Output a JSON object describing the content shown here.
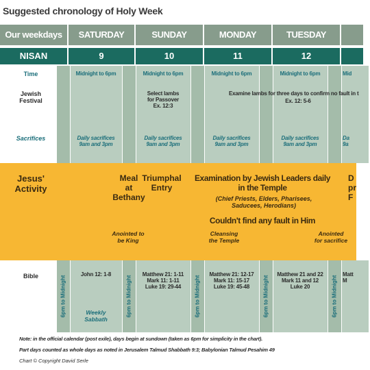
{
  "title": "Suggested chronology of Holy Week",
  "header": {
    "label": "Our weekdays",
    "days": [
      "SATURDAY",
      "SUNDAY",
      "MONDAY",
      "TUESDAY"
    ]
  },
  "nisan": {
    "label": "NISAN",
    "dates": [
      "9",
      "10",
      "11",
      "12"
    ]
  },
  "time": {
    "label": "Time",
    "cells": [
      "Midnight to 6pm",
      "Midnight to 6pm",
      "Midnight to 6pm",
      "Midnight to 6pm",
      "Mid"
    ]
  },
  "festival": {
    "label": "Jewish\nFestival",
    "sunday": "Select lambs\nfor Passover\nEx. 12:3",
    "examine": "Examine lambs for three days to confirm no fault in t",
    "examine_ref": "Ex. 12: 5-6"
  },
  "sacrifices": {
    "label": "Sacrifices",
    "cells": [
      "Daily sacrifices\n9am and 3pm",
      "Daily sacrifices\n9am and 3pm",
      "Daily sacrifices\n9am and 3pm",
      "Daily sacrifices\n9am and 3pm",
      "Da\n9a"
    ]
  },
  "activity": {
    "label": "Jesus'\nActivity",
    "meal": "Meal\nat\nBethany",
    "entry": "Triumphal\nEntry",
    "examination": "Examination by Jewish Leaders daily\nin the Temple",
    "leaders": "(Chief Priests, Elders, Pharisees,\nSaducees, Herodians)",
    "no_fault": "Couldn't find any fault in Him",
    "anointed_king": "Anointed to\nbe King",
    "cleansing": "Cleansing\nthe Temple",
    "anointed_sacrifice": "Anointed\nfor sacrifice",
    "partial": "D\npr\nF"
  },
  "bible": {
    "label": "Bible",
    "cells": [
      "John 12: 1-8",
      "Matthew 21: 1-11\nMark 11: 1-11\nLuke 19: 29-44",
      "Matthew 21: 12-17\nMark 11: 15-17\nLuke 19: 45-48",
      "Matthew 21 and 22\nMark 11 and 12\nLuke 20",
      "Matt\nM"
    ],
    "sabbath": "Weekly\nSabbath"
  },
  "night": [
    "6pm to Midnight",
    "6pm to Midnight",
    "6pm to Midnight",
    "6pm to Midnight",
    "6pm to Midnight"
  ],
  "notes": [
    "Note: in the official calendar (post exile), days begin at sundown (taken as 6pm for simplicity in the chart).",
    "Part days counted as whole days as noted in Jerusalem Talmud Shabbath 9:3; Babylonian Talmud Pesahim 49",
    "Chart © Copyright David Serle"
  ]
}
